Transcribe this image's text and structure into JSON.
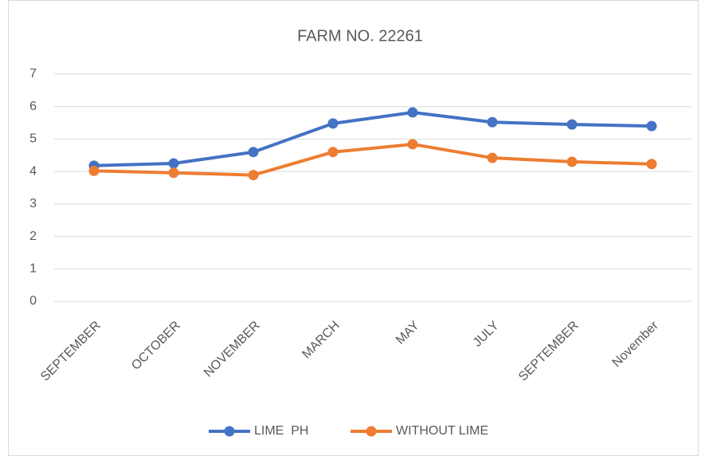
{
  "chart_data": {
    "type": "line",
    "title": "FARM NO. 22261",
    "categories": [
      "SEPTEMBER",
      "OCTOBER",
      "NOVEMBER",
      "MARCH",
      "MAY",
      "JULY",
      "SEPTEMBER",
      "November"
    ],
    "series": [
      {
        "name": "LIME  PH",
        "color": "#4472c4",
        "values": [
          4.18,
          4.25,
          4.6,
          5.48,
          5.82,
          5.52,
          5.45,
          5.4
        ]
      },
      {
        "name": "WITHOUT LIME",
        "color": "#ed7d31",
        "values": [
          4.02,
          3.96,
          3.89,
          4.6,
          4.84,
          4.42,
          4.3,
          4.23
        ]
      }
    ],
    "ylim": [
      0,
      7
    ],
    "yticks": [
      0,
      1,
      2,
      3,
      4,
      5,
      6,
      7
    ],
    "grid": true,
    "legend": "bottom"
  }
}
